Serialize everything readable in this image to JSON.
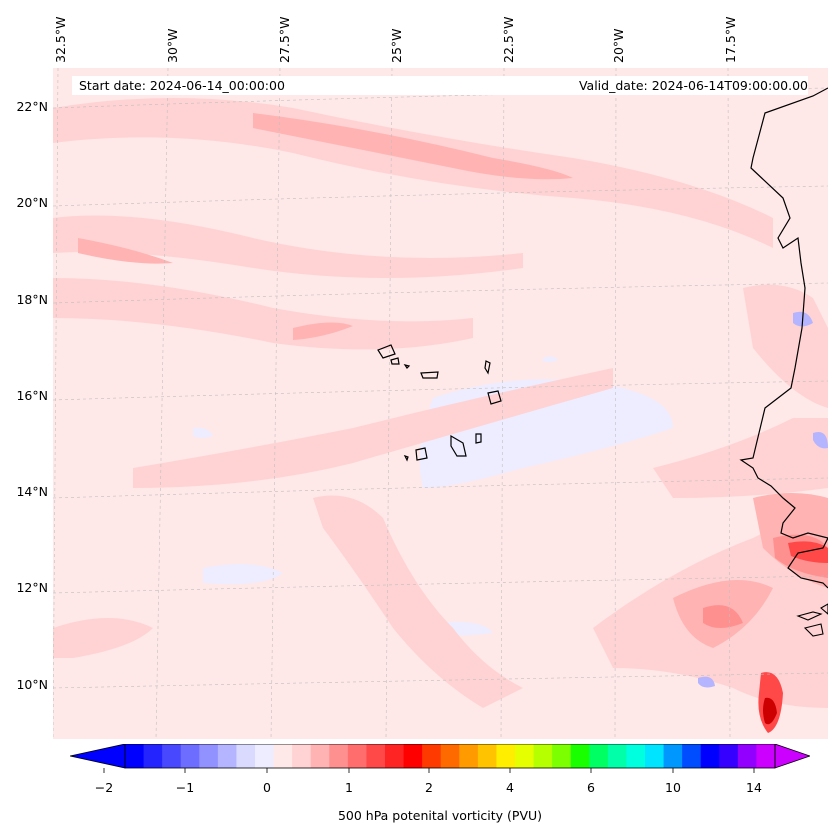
{
  "map": {
    "start_date": "Start date: 2024-06-14_00:00:00",
    "valid_date": "Valid_date: 2024-06-14T09:00:00.00",
    "lon_labels": [
      "32.5°W",
      "30°W",
      "27.5°W",
      "25°W",
      "22.5°W",
      "20°W",
      "17.5°W"
    ],
    "lat_labels": [
      "22°N",
      "20°N",
      "18°N",
      "16°N",
      "14°N",
      "12°N",
      "10°N"
    ],
    "extent": {
      "lon_min": -32.6,
      "lon_max": -15.6,
      "lat_min": 8.9,
      "lat_max": 22.8
    },
    "features": [
      "Cape Verde islands",
      "West African coastline"
    ]
  },
  "colorbar": {
    "label": "500 hPa potenital vorticity (PVU)",
    "tick_labels": [
      "−2",
      "−1",
      "0",
      "1",
      "2",
      "4",
      "6",
      "10",
      "14"
    ],
    "colors": [
      "#0000ff",
      "#2424ff",
      "#4848ff",
      "#6d6dff",
      "#9191ff",
      "#b5b5ff",
      "#dadaff",
      "#ededff",
      "#ffe8e8",
      "#ffd3d3",
      "#ffb3b3",
      "#ff9090",
      "#ff6d6d",
      "#ff4848",
      "#ff2424",
      "#ff0000",
      "#ff3a00",
      "#ff6a00",
      "#ff9b00",
      "#ffc300",
      "#ffee00",
      "#e5ff00",
      "#b5ff00",
      "#7cff00",
      "#19ff00",
      "#00ff63",
      "#00ffa8",
      "#00ffdf",
      "#00e4ff",
      "#0098ff",
      "#004cff",
      "#0000ff",
      "#3500ff",
      "#9200ff",
      "#cc00ff"
    ]
  }
}
